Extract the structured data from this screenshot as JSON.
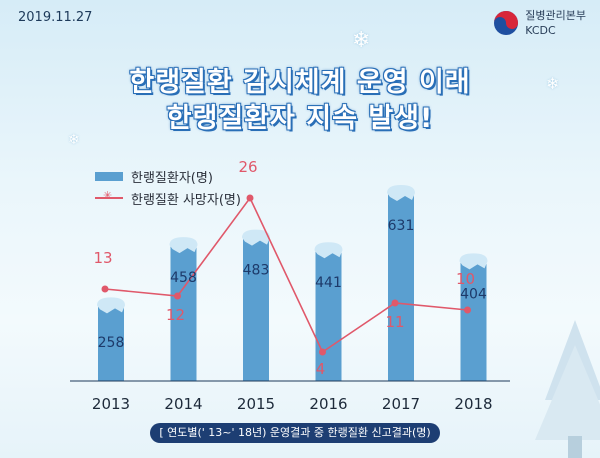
{
  "date": "2019.11.27",
  "logo": {
    "line1": "질병관리본부",
    "line2": "KCDC",
    "icon": "kcdc-taegeuk-logo-icon"
  },
  "title": {
    "line1": "한랭질환 감시체계 운영 이래",
    "line2": "한랭질환자 지속 발생!"
  },
  "footer_note": "[ 연도별(' 13~' 18년) 운영결과 중 한랭질환 신고결과(명)",
  "colors": {
    "bar": "#5a9fd0",
    "bar_top": "#cfe8f6",
    "line": "#e0586a",
    "title_outline": "#2a6fb7",
    "footer_bg": "#1d3e73"
  },
  "chart_data": {
    "type": "bar",
    "categories": [
      "2013",
      "2014",
      "2015",
      "2016",
      "2017",
      "2018"
    ],
    "series": [
      {
        "name": "한랭질환자(명)",
        "type": "bar",
        "values": [
          258,
          458,
          483,
          441,
          631,
          404
        ]
      },
      {
        "name": "한랭질환 사망자(명)",
        "type": "line",
        "values": [
          13,
          12,
          26,
          4,
          11,
          10
        ]
      }
    ],
    "bar_ylim": [
      0,
      700
    ],
    "line_ylim": [
      0,
      30
    ],
    "legend": "top-left",
    "grid": false
  }
}
